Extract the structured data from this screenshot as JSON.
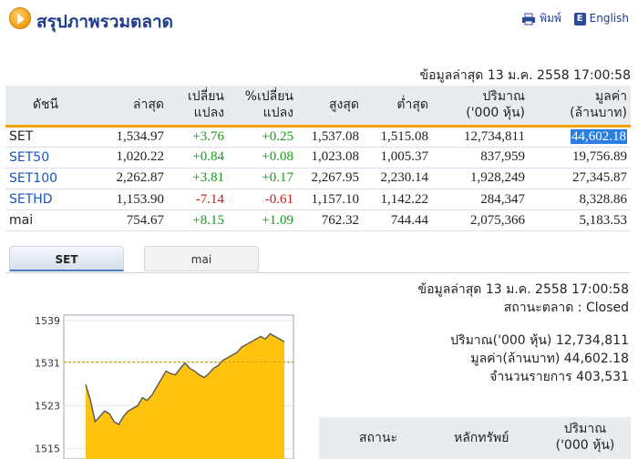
{
  "header": {
    "title": "สรุปภาพรวมตลาด",
    "print_label": "พิมพ์",
    "english_label": "English",
    "print_icon": "printer-icon",
    "english_icon": "english-flag-icon"
  },
  "table": {
    "updated": "ข้อมูลล่าสุด 13 ม.ค. 2558 17:00:58",
    "headers": {
      "index": "ดัชนี",
      "last": "ล่าสุด",
      "change_1": "เปลี่ยน",
      "change_2": "แปลง",
      "pct_1": "%เปลี่ยน",
      "pct_2": "แปลง",
      "high": "สูงสุด",
      "low": "ต่ำสุด",
      "volume_1": "ปริมาณ",
      "volume_2": "('000 หุ้น)",
      "value_1": "มูลค่า",
      "value_2": "(ล้านบาท)"
    },
    "rows": [
      {
        "name": "SET",
        "last": "1,534.97",
        "change": "+3.76",
        "pct": "+0.25",
        "high": "1,537.08",
        "low": "1,515.08",
        "volume": "12,734,811",
        "value": "44,602.18"
      },
      {
        "name": "SET50",
        "last": "1,020.22",
        "change": "+0.84",
        "pct": "+0.08",
        "high": "1,023.08",
        "low": "1,005.37",
        "volume": "837,959",
        "value": "19,756.89"
      },
      {
        "name": "SET100",
        "last": "2,262.87",
        "change": "+3.81",
        "pct": "+0.17",
        "high": "2,267.95",
        "low": "2,230.14",
        "volume": "1,928,249",
        "value": "27,345.87"
      },
      {
        "name": "SETHD",
        "last": "1,153.90",
        "change": "-7.14",
        "pct": "-0.61",
        "high": "1,157.10",
        "low": "1,142.22",
        "volume": "284,347",
        "value": "8,328.86"
      },
      {
        "name": "mai",
        "last": "754.67",
        "change": "+8.15",
        "pct": "+1.09",
        "high": "762.32",
        "low": "744.44",
        "volume": "2,075,366",
        "value": "5,183.53"
      }
    ]
  },
  "tabs": [
    {
      "label": "SET",
      "active": true
    },
    {
      "label": "mai",
      "active": false
    }
  ],
  "info": {
    "updated": "ข้อมูลล่าสุด 13 ม.ค. 2558 17:00:58",
    "status": "สถานะตลาด : Closed",
    "volume": "ปริมาณ('000 หุ้น) 12,734,811",
    "value": "มูลค่า(ล้านบาท) 44,602.18",
    "trades": "จำนวนรายการ 403,531"
  },
  "mini_table": {
    "status": "สถานะ",
    "security": "หลักทรัพย์",
    "volume_1": "ปริมาณ",
    "volume_2": "('000 หุ้น)"
  },
  "colors": {
    "accent": "#f2a300",
    "up": "#1a9a1a",
    "down": "#d01818",
    "link": "#1a56b5",
    "title": "#1f3d8a",
    "area": "#ffc20e"
  },
  "chart_data": {
    "type": "area",
    "ylim": [
      1513,
      1540
    ],
    "yticks": [
      "1539",
      "1531",
      "1523",
      "1515"
    ],
    "ytick_values": [
      1539,
      1531,
      1523,
      1515
    ],
    "reference_line": 1531.21,
    "values": [
      1527,
      1524,
      1520,
      1521,
      1522,
      1521.5,
      1520,
      1519.5,
      1521,
      1522,
      1522.5,
      1523,
      1524.5,
      1524,
      1525,
      1526.5,
      1528,
      1529.5,
      1529,
      1528.8,
      1530,
      1531,
      1530,
      1529.5,
      1528.8,
      1528.3,
      1529,
      1530,
      1530.5,
      1531.5,
      1532,
      1532.5,
      1533,
      1534,
      1534.5,
      1535,
      1535.5,
      1536,
      1535.5,
      1536.5,
      1536,
      1535.5,
      1535
    ]
  }
}
